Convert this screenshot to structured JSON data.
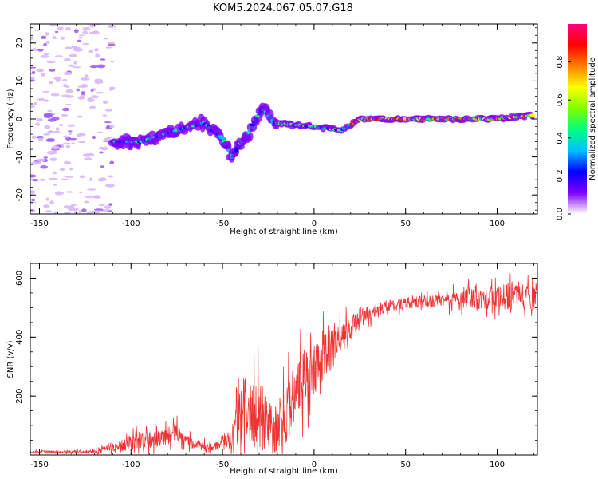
{
  "title": "KOM5.2024.067.05.07.G18",
  "chart_data": [
    {
      "type": "heatmap",
      "xlabel": "Height of straight line (km)",
      "ylabel": "Frequency (Hz)",
      "xlim": [
        -155,
        122
      ],
      "ylim": [
        -25,
        25
      ],
      "xticks": [
        -150,
        -100,
        -50,
        0,
        50,
        100
      ],
      "yticks": [
        -20,
        -10,
        0,
        10,
        20
      ],
      "description_of_ridge": [
        {
          "x": -110,
          "y": -6
        },
        {
          "x": -95,
          "y": -6
        },
        {
          "x": -75,
          "y": -3
        },
        {
          "x": -60,
          "y": -1
        },
        {
          "x": -50,
          "y": -5
        },
        {
          "x": -45,
          "y": -10
        },
        {
          "x": -35,
          "y": -3
        },
        {
          "x": -28,
          "y": 3
        },
        {
          "x": -22,
          "y": -1
        },
        {
          "x": 0,
          "y": -2
        },
        {
          "x": 15,
          "y": -3
        },
        {
          "x": 25,
          "y": 0
        },
        {
          "x": 50,
          "y": 0
        },
        {
          "x": 75,
          "y": 0
        },
        {
          "x": 100,
          "y": 0
        },
        {
          "x": 120,
          "y": 1
        }
      ],
      "colorbar": {
        "label": "Normalized spectral amplitude",
        "ticks": [
          "0.0",
          "0.2",
          "0.4",
          "0.6",
          "0.8"
        ],
        "range": [
          0,
          1
        ],
        "colors": [
          "#ffffff",
          "#8000ff",
          "#0000ff",
          "#00c0ff",
          "#00ff80",
          "#80ff00",
          "#ffff00",
          "#ff8000",
          "#ff0000",
          "#ff0080"
        ]
      }
    },
    {
      "type": "line",
      "xlabel": "Height of straight line (km)",
      "ylabel": "SNR (v/v)",
      "xlim": [
        -155,
        122
      ],
      "ylim": [
        0,
        650
      ],
      "xticks": [
        -150,
        -100,
        -50,
        0,
        50,
        100
      ],
      "yticks": [
        200,
        400,
        600
      ],
      "color": "#ee3333",
      "envelope": [
        {
          "x": -155,
          "base": 10,
          "amp": 6
        },
        {
          "x": -120,
          "base": 12,
          "amp": 8
        },
        {
          "x": -110,
          "base": 25,
          "amp": 20
        },
        {
          "x": -100,
          "base": 45,
          "amp": 40
        },
        {
          "x": -85,
          "base": 55,
          "amp": 45
        },
        {
          "x": -75,
          "base": 80,
          "amp": 40
        },
        {
          "x": -70,
          "base": 45,
          "amp": 30
        },
        {
          "x": -55,
          "base": 25,
          "amp": 15
        },
        {
          "x": -45,
          "base": 60,
          "amp": 60
        },
        {
          "x": -38,
          "base": 150,
          "amp": 200
        },
        {
          "x": -30,
          "base": 130,
          "amp": 180
        },
        {
          "x": -22,
          "base": 80,
          "amp": 120
        },
        {
          "x": -15,
          "base": 150,
          "amp": 150
        },
        {
          "x": -5,
          "base": 260,
          "amp": 150
        },
        {
          "x": 5,
          "base": 330,
          "amp": 120
        },
        {
          "x": 15,
          "base": 390,
          "amp": 80
        },
        {
          "x": 25,
          "base": 470,
          "amp": 40
        },
        {
          "x": 40,
          "base": 505,
          "amp": 30
        },
        {
          "x": 60,
          "base": 520,
          "amp": 30
        },
        {
          "x": 80,
          "base": 530,
          "amp": 45
        },
        {
          "x": 100,
          "base": 535,
          "amp": 60
        },
        {
          "x": 122,
          "base": 540,
          "amp": 70
        }
      ]
    }
  ]
}
